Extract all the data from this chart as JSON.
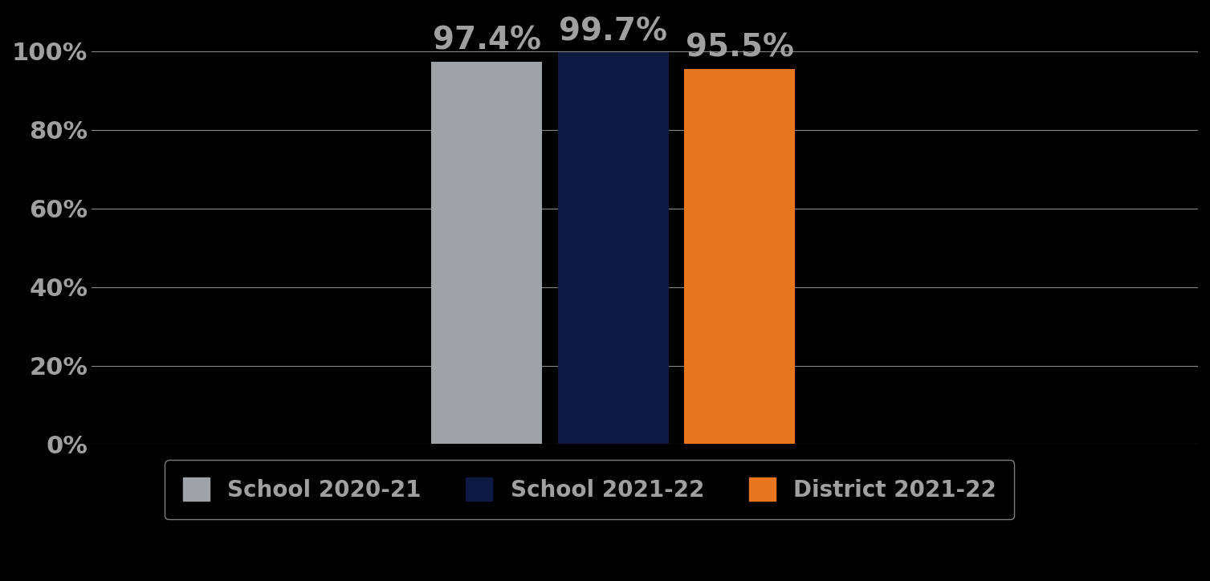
{
  "categories": [
    "School 2020-21",
    "School 2021-22",
    "District 2021-22"
  ],
  "values": [
    97.4,
    99.7,
    95.5
  ],
  "bar_colors": [
    "#9EA3A8",
    "#0D1941",
    "#E8761E"
  ],
  "bar_labels": [
    "97.4%",
    "99.7%",
    "95.5%"
  ],
  "ylim": [
    0,
    110
  ],
  "yticks": [
    0,
    20,
    40,
    60,
    80,
    100
  ],
  "ytick_labels": [
    "0%",
    "20%",
    "40%",
    "60%",
    "80%",
    "100%"
  ],
  "background_color": "#000000",
  "text_color": "#A0A0A0",
  "grid_color": "#888888",
  "tick_fontsize": 22,
  "bar_label_fontsize": 28,
  "legend_fontsize": 20,
  "bar_width": 0.28,
  "bar_positions": [
    2.0,
    2.32,
    2.64
  ],
  "xlim": [
    1.0,
    3.8
  ]
}
